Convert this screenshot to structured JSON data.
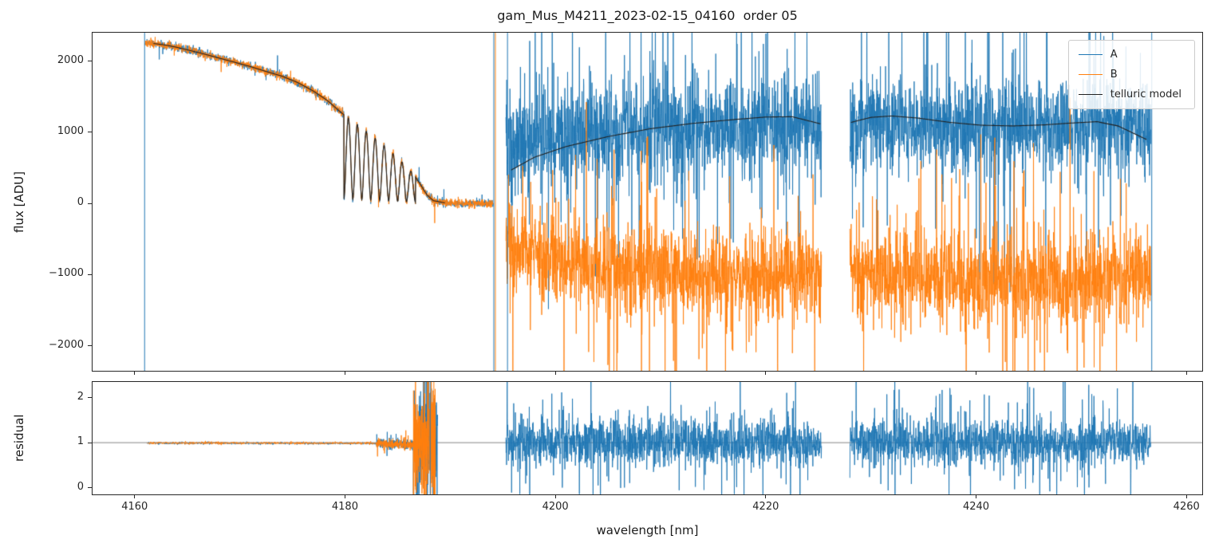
{
  "legend": {
    "items": [
      {
        "label": "A",
        "color": "#1f77b4"
      },
      {
        "label": "B",
        "color": "#ff7f0e"
      },
      {
        "label": "telluric model",
        "color": "#222222"
      }
    ]
  },
  "chart_data": {
    "type": "line",
    "title": "gam_Mus_M4211_2023-02-15_04160  order 05",
    "xlabel": "wavelength [nm]",
    "grid": false,
    "legend_position": "upper right",
    "xlim": [
      4156,
      4261.5
    ],
    "x_ticks": [
      {
        "v": 4160,
        "label": "4160"
      },
      {
        "v": 4180,
        "label": "4180"
      },
      {
        "v": 4200,
        "label": "4200"
      },
      {
        "v": 4220,
        "label": "4220"
      },
      {
        "v": 4240,
        "label": "4240"
      },
      {
        "v": 4260,
        "label": "4260"
      }
    ],
    "profiles": {
      "left_flux": [
        [
          4161.0,
          2260
        ],
        [
          4162,
          2245
        ],
        [
          4163,
          2225
        ],
        [
          4164,
          2195
        ],
        [
          4165,
          2160
        ],
        [
          4166.5,
          2105
        ],
        [
          4168,
          2045
        ],
        [
          4169.5,
          1985
        ],
        [
          4171,
          1925
        ],
        [
          4172.5,
          1855
        ],
        [
          4174,
          1790
        ],
        [
          4175.5,
          1700
        ],
        [
          4177,
          1580
        ],
        [
          4178.3,
          1450
        ],
        [
          4179.7,
          1270
        ],
        [
          4181,
          1130
        ],
        [
          4182.5,
          960
        ],
        [
          4184,
          780
        ],
        [
          4185.3,
          600
        ],
        [
          4186.5,
          420
        ],
        [
          4187.2,
          260
        ],
        [
          4187.8,
          120
        ],
        [
          4188.4,
          40
        ],
        [
          4189.5,
          10
        ],
        [
          4191,
          0
        ],
        [
          4194.1,
          0
        ]
      ]
    },
    "panels": [
      {
        "name": "flux",
        "ylabel": "flux [ADU]",
        "ylim": [
          -2350,
          2400
        ],
        "y_ticks": [
          {
            "v": -2000,
            "label": "−2000"
          },
          {
            "v": -1000,
            "label": "−1000"
          },
          {
            "v": 0,
            "label": "0"
          },
          {
            "v": 1000,
            "label": "1000"
          },
          {
            "v": 2000,
            "label": "2000"
          }
        ],
        "series": [
          {
            "name": "A",
            "color": "#1f77b4",
            "lw": 1,
            "alpha": 0.9,
            "segments": [
              {
                "x0": 4161.0,
                "x1": 4194.1,
                "n": 1700,
                "base_ref": "left_flux",
                "osc": {
                  "x0": 4179.9,
                  "x1": 4186.7,
                  "period": 0.85,
                  "floor": 0.05,
                  "sharp": 1.7
                },
                "noise": 28,
                "spike_p": 0.004,
                "spike": 220,
                "seed": 11
              },
              {
                "x0": 4195.3,
                "x1": 4225.3,
                "n": 1500,
                "base": [
                  [
                    4195.3,
                    750
                  ],
                  [
                    4198,
                    880
                  ],
                  [
                    4202,
                    960
                  ],
                  [
                    4207,
                    1020
                  ],
                  [
                    4212,
                    1060
                  ],
                  [
                    4217,
                    1100
                  ],
                  [
                    4221,
                    1130
                  ],
                  [
                    4225.3,
                    1080
                  ]
                ],
                "noise": 330,
                "spike_p": 0.05,
                "spike": 1500,
                "seed": 12
              },
              {
                "x0": 4228.0,
                "x1": 4256.6,
                "n": 1400,
                "base": [
                  [
                    4228,
                    1030
                  ],
                  [
                    4232,
                    1090
                  ],
                  [
                    4237,
                    1070
                  ],
                  [
                    4242,
                    1050
                  ],
                  [
                    4247,
                    1070
                  ],
                  [
                    4251,
                    1090
                  ],
                  [
                    4256.6,
                    1040
                  ]
                ],
                "noise": 330,
                "spike_p": 0.05,
                "spike": 1500,
                "seed": 13
              }
            ]
          },
          {
            "name": "B",
            "color": "#ff7f0e",
            "lw": 1,
            "alpha": 0.9,
            "segments": [
              {
                "x0": 4161.0,
                "x1": 4194.1,
                "n": 1700,
                "base_ref": "left_flux",
                "osc": {
                  "x0": 4179.9,
                  "x1": 4186.7,
                  "period": 0.85,
                  "floor": 0.05,
                  "sharp": 1.7
                },
                "noise": 30,
                "spike_p": 0.004,
                "spike": 220,
                "seed": 21
              },
              {
                "x0": 4195.3,
                "x1": 4225.3,
                "n": 1500,
                "base": [
                  [
                    4195.3,
                    -550
                  ],
                  [
                    4198,
                    -720
                  ],
                  [
                    4202,
                    -860
                  ],
                  [
                    4207,
                    -940
                  ],
                  [
                    4212,
                    -980
                  ],
                  [
                    4217,
                    -1000
                  ],
                  [
                    4221,
                    -1010
                  ],
                  [
                    4225.3,
                    -990
                  ]
                ],
                "noise": 310,
                "spike_p": 0.05,
                "spike": 1400,
                "seed": 22
              },
              {
                "x0": 4228.0,
                "x1": 4256.6,
                "n": 1400,
                "base": [
                  [
                    4228,
                    -970
                  ],
                  [
                    4233,
                    -1040
                  ],
                  [
                    4239,
                    -1090
                  ],
                  [
                    4245,
                    -1090
                  ],
                  [
                    4251,
                    -1070
                  ],
                  [
                    4256.6,
                    -1040
                  ]
                ],
                "noise": 310,
                "spike_p": 0.05,
                "spike": 1400,
                "seed": 23
              }
            ]
          },
          {
            "name": "telluric model",
            "color": "#222222",
            "lw": 1.1,
            "alpha": 1,
            "segments": [
              {
                "x0": 4161.8,
                "x1": 4189.5,
                "n": 1600,
                "base_ref": "left_flux",
                "osc": {
                  "x0": 4179.9,
                  "x1": 4186.7,
                  "period": 0.85,
                  "floor": 0.05,
                  "sharp": 1.7
                },
                "seed": 1
              },
              {
                "x0": 4195.8,
                "x1": 4225.2,
                "n": 300,
                "base": [
                  [
                    4195.8,
                    470
                  ],
                  [
                    4198,
                    650
                  ],
                  [
                    4201,
                    800
                  ],
                  [
                    4205,
                    940
                  ],
                  [
                    4209,
                    1050
                  ],
                  [
                    4213,
                    1125
                  ],
                  [
                    4217,
                    1180
                  ],
                  [
                    4220,
                    1215
                  ],
                  [
                    4222.5,
                    1220
                  ],
                  [
                    4225.2,
                    1120
                  ]
                ],
                "seed": 2
              },
              {
                "x0": 4228.1,
                "x1": 4256.2,
                "n": 300,
                "base": [
                  [
                    4228.1,
                    1140
                  ],
                  [
                    4230,
                    1210
                  ],
                  [
                    4232,
                    1230
                  ],
                  [
                    4234.5,
                    1200
                  ],
                  [
                    4237.5,
                    1140
                  ],
                  [
                    4240.5,
                    1100
                  ],
                  [
                    4243.5,
                    1090
                  ],
                  [
                    4246.5,
                    1105
                  ],
                  [
                    4249,
                    1130
                  ],
                  [
                    4251.5,
                    1150
                  ],
                  [
                    4253.5,
                    1090
                  ],
                  [
                    4256.2,
                    900
                  ]
                ],
                "seed": 3
              }
            ]
          }
        ],
        "vlines": [
          {
            "x": 4160.95,
            "color": "#1f77b4"
          },
          {
            "x": 4194.15,
            "color": "#1f77b4"
          },
          {
            "x": 4194.3,
            "color": "#ff7f0e"
          },
          {
            "x": 4195.45,
            "color": "#1f77b4"
          },
          {
            "x": 4256.7,
            "color": "#1f77b4"
          }
        ]
      },
      {
        "name": "residual",
        "ylabel": "residual",
        "ylim": [
          -0.15,
          2.35
        ],
        "y_ticks": [
          {
            "v": 0,
            "label": "0"
          },
          {
            "v": 1,
            "label": "1"
          },
          {
            "v": 2,
            "label": "2"
          }
        ],
        "hline": {
          "y": 1,
          "color": "#666666"
        },
        "series": [
          {
            "name": "A",
            "color": "#1f77b4",
            "lw": 1,
            "alpha": 0.9,
            "segments": [
              {
                "x0": 4161.2,
                "x1": 4183.0,
                "n": 900,
                "base": [
                  [
                    4161.2,
                    0.99
                  ],
                  [
                    4183,
                    0.985
                  ]
                ],
                "noise": 0.012,
                "seed": 31
              },
              {
                "x0": 4183.0,
                "x1": 4186.5,
                "n": 300,
                "base": [
                  [
                    4183,
                    0.985
                  ],
                  [
                    4186.5,
                    0.96
                  ]
                ],
                "noise": 0.045,
                "spike_p": 0.06,
                "spike": 0.22,
                "seed": 32
              },
              {
                "x0": 4186.5,
                "x1": 4188.8,
                "n": 260,
                "base": 1.05,
                "noise": 0.5,
                "spike_p": 0.12,
                "spike": 1.4,
                "seed": 33
              },
              {
                "x0": 4195.3,
                "x1": 4225.3,
                "n": 1500,
                "base": 1.0,
                "noise": 0.25,
                "spike_p": 0.05,
                "spike": 1.0,
                "seed": 34
              },
              {
                "x0": 4228.0,
                "x1": 4256.6,
                "n": 1400,
                "base": 1.0,
                "noise": 0.25,
                "spike_p": 0.05,
                "spike": 1.0,
                "seed": 35
              }
            ]
          },
          {
            "name": "B",
            "color": "#ff7f0e",
            "lw": 1,
            "alpha": 0.9,
            "segments": [
              {
                "x0": 4161.2,
                "x1": 4183.0,
                "n": 900,
                "base": [
                  [
                    4161.2,
                    0.995
                  ],
                  [
                    4183,
                    0.99
                  ]
                ],
                "noise": 0.014,
                "seed": 41
              },
              {
                "x0": 4183.0,
                "x1": 4186.5,
                "n": 300,
                "base": [
                  [
                    4183,
                    0.99
                  ],
                  [
                    4186.5,
                    0.95
                  ]
                ],
                "noise": 0.05,
                "spike_p": 0.07,
                "spike": 0.22,
                "seed": 42
              },
              {
                "x0": 4186.5,
                "x1": 4188.6,
                "n": 240,
                "base": 1.0,
                "noise": 0.5,
                "spike_p": 0.12,
                "spike": 1.4,
                "seed": 43
              }
            ]
          }
        ],
        "vlines": [
          {
            "x": 4187.5,
            "color": "#ff7f0e"
          },
          {
            "x": 4188.1,
            "color": "#1f77b4"
          },
          {
            "x": 4188.45,
            "color": "#ff7f0e"
          }
        ]
      }
    ]
  }
}
